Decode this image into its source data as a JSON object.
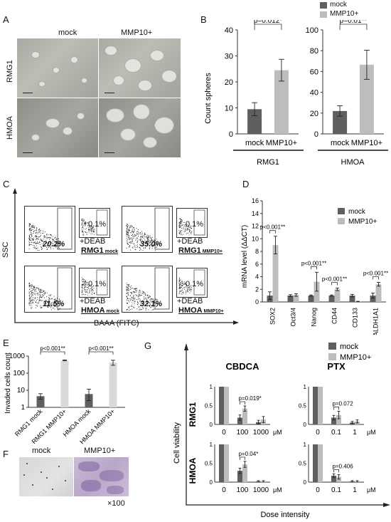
{
  "panels": {
    "A": {
      "label": "A",
      "col_mock": "mock",
      "col_mmp": "MMP10+",
      "row_rmg1": "RMG1",
      "row_hmoa": "HMOA"
    },
    "B": {
      "label": "B",
      "legend": [
        "mock",
        "MMP10+"
      ],
      "ylabel": "Count spheres",
      "group_rmg1": "RMG1",
      "group_hmoa": "HMOA"
    },
    "C": {
      "label": "C",
      "ylabel": "SSC",
      "xlabel": "BAAA (FITC)",
      "deab": "+DEAB",
      "gates": [
        {
          "main": "20.2%",
          "deab": "0.1%",
          "name_main": "RMG1",
          "name_sub": "mock"
        },
        {
          "main": "35.0%",
          "deab": "0.1%",
          "name_main": "RMG1",
          "name_sub": "MMP10+"
        },
        {
          "main": "11.5%",
          "deab": "0.1%",
          "name_main": "HMOA",
          "name_sub": "mock"
        },
        {
          "main": "32.1%",
          "deab": "0.1%",
          "name_main": "HMOA",
          "name_sub": "MMP10+"
        }
      ]
    },
    "D": {
      "label": "D"
    },
    "E": {
      "label": "E"
    },
    "F": {
      "label": "F",
      "col_mock": "mock",
      "col_mmp": "MMP10+",
      "magnification": "×100"
    },
    "G": {
      "label": "G",
      "ylabel": "Cell viability",
      "xlabel": "Dose intensity",
      "row_rmg1": "RMG1",
      "row_hmoa": "HMOA"
    }
  },
  "colors": {
    "mock": "#5f5f5f",
    "mmp": "#bdbdbd"
  },
  "chart_data": [
    {
      "id": "B-RMG1",
      "type": "bar",
      "categories": [
        "mock",
        "MMP10+"
      ],
      "values": [
        9.5,
        24.5
      ],
      "errors": [
        2.5,
        4.2
      ],
      "ylim": [
        0,
        40
      ],
      "yticks": [
        0,
        10,
        20,
        30,
        40
      ],
      "ylabel": "Count spheres",
      "annotation": "p=0.012*"
    },
    {
      "id": "B-HMOA",
      "type": "bar",
      "categories": [
        "mock",
        "MMP10+"
      ],
      "values": [
        22,
        66.5
      ],
      "errors": [
        5,
        14
      ],
      "ylim": [
        0,
        100
      ],
      "yticks": [
        0,
        20,
        40,
        60,
        80,
        100
      ],
      "annotation": "p=0.01**"
    },
    {
      "id": "D",
      "type": "bar",
      "categories": [
        "SOX2",
        "Oct3/4",
        "Nanog",
        "CD44",
        "CD133",
        "ALDH1A1"
      ],
      "series": [
        {
          "name": "mock",
          "values": [
            1,
            1,
            1,
            1,
            1,
            1
          ],
          "errors": [
            0.6,
            0.15,
            0.1,
            0.1,
            0.2,
            0.4
          ]
        },
        {
          "name": "MMP10+",
          "values": [
            9,
            1.1,
            3.2,
            2,
            0.05,
            2.8
          ],
          "errors": [
            1.4,
            0.2,
            1.5,
            0.2,
            0.05,
            0.3
          ]
        }
      ],
      "ylim": [
        0,
        16
      ],
      "yticks": [
        0,
        2,
        4,
        6,
        8,
        10,
        12,
        14,
        16
      ],
      "ylabel": "mRNA level (ΔΔCT)",
      "legend": [
        "mock",
        "MMP10+"
      ],
      "annotations": [
        {
          "category": "SOX2",
          "text": "p<0.001**"
        },
        {
          "category": "Nanog",
          "text": "p<0.001**"
        },
        {
          "category": "CD44",
          "text": "p<0.001**"
        },
        {
          "category": "ALDH1A1",
          "text": "p<0.001**"
        }
      ]
    },
    {
      "id": "E",
      "type": "bar",
      "yscale": "log",
      "categories": [
        "RMG1 mock",
        "RMG1 MMP10+",
        "HMOA mock",
        "HMOA MMP10+"
      ],
      "values": [
        4.5,
        550,
        6,
        420
      ],
      "errors_low": [
        1.5,
        20,
        3.5,
        130
      ],
      "errors_high": [
        1.8,
        40,
        5.5,
        150
      ],
      "yticks": [
        1,
        10,
        100,
        1000
      ],
      "ylabel": "Invaded cells count",
      "annotations": [
        "p<0.001**",
        "p<0.001**"
      ]
    },
    {
      "id": "G-RMG1-CBDCA",
      "type": "bar",
      "title": "CBDCA",
      "categories": [
        "0",
        "100",
        "1000"
      ],
      "unit": "μM",
      "series": [
        {
          "name": "mock",
          "values": [
            1,
            0.18,
            0.06
          ],
          "errors": [
            0,
            0.07,
            0.05
          ]
        },
        {
          "name": "MMP10+",
          "values": [
            1,
            0.42,
            0.13
          ],
          "errors": [
            0,
            0.07,
            0.08
          ]
        }
      ],
      "ylim": [
        0,
        1
      ],
      "yticks": [
        "0",
        "0.5",
        "1"
      ],
      "annotation": "p=0.019*"
    },
    {
      "id": "G-RMG1-PTX",
      "type": "bar",
      "title": "PTX",
      "categories": [
        "0",
        "0.1",
        "1"
      ],
      "unit": "μM",
      "series": [
        {
          "name": "mock",
          "values": [
            1,
            0.18,
            0.05
          ],
          "errors": [
            0,
            0.06,
            0.03
          ]
        },
        {
          "name": "MMP10+",
          "values": [
            1,
            0.25,
            0.08
          ],
          "errors": [
            0,
            0.1,
            0.04
          ]
        }
      ],
      "ylim": [
        0,
        1
      ],
      "yticks": [
        "0",
        "0.5",
        "1"
      ],
      "annotation": "p=0.072"
    },
    {
      "id": "G-HMOA-CBDCA",
      "type": "bar",
      "categories": [
        "0",
        "100",
        "1000"
      ],
      "unit": "μM",
      "series": [
        {
          "name": "mock",
          "values": [
            1,
            0.3,
            0.02
          ],
          "errors": [
            0,
            0.07,
            0.02
          ]
        },
        {
          "name": "MMP10+",
          "values": [
            1,
            0.47,
            0.02
          ],
          "errors": [
            0,
            0.08,
            0.02
          ]
        }
      ],
      "ylim": [
        0,
        1
      ],
      "yticks": [
        "0",
        "0.5",
        "1"
      ],
      "annotation": "p=0.04*"
    },
    {
      "id": "G-HMOA-PTX",
      "type": "bar",
      "categories": [
        "0",
        "0.1",
        "1"
      ],
      "unit": "μM",
      "series": [
        {
          "name": "mock",
          "values": [
            1,
            0.17,
            0.02
          ],
          "errors": [
            0,
            0.05,
            0.02
          ]
        },
        {
          "name": "MMP10+",
          "values": [
            1,
            0.14,
            0.02
          ],
          "errors": [
            0,
            0.06,
            0.02
          ]
        }
      ],
      "ylim": [
        0,
        1
      ],
      "yticks": [
        "0",
        "0.5",
        "1"
      ],
      "annotation": "p=0.406"
    }
  ]
}
